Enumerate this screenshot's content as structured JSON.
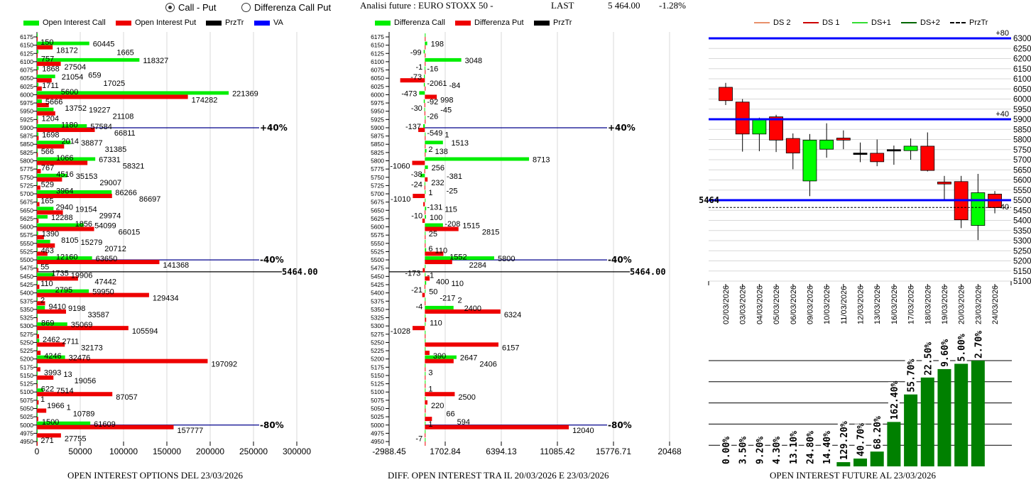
{
  "header": {
    "radio_call_put": "Call - Put",
    "radio_diff": "Differenza Call Put",
    "selected": "Call - Put",
    "analysis_title": "Analisi future : EURO STOXX 50 -",
    "last_label": "LAST",
    "last_value": "5 464.00",
    "change": "-1.28%"
  },
  "colors": {
    "call": "#00ee00",
    "put": "#ee0000",
    "prztr": "#000000",
    "va": "#0000ff",
    "line": "#00008b",
    "candle_up": "#00ff00",
    "candle_down": "#ff0000",
    "future_bar": "#008000",
    "ds2": "#e8906a",
    "ds1": "#cc0000",
    "dsp1": "#33dd33",
    "dsp2": "#006600"
  },
  "chart_data": [
    {
      "type": "bar",
      "orientation": "horizontal",
      "title": "OPEN INTEREST OPTIONS DEL 23/03/2026",
      "legend": [
        "Open Interest Call",
        "Open Interest Put",
        "PrzTr",
        "VA"
      ],
      "legend_placement": "top",
      "xlim": [
        0,
        300000
      ],
      "xticks": [
        "0",
        "50000",
        "100000",
        "150000",
        "200000",
        "250000",
        "300000"
      ],
      "categories": [
        6175,
        6150,
        6125,
        6100,
        6075,
        6050,
        6025,
        6000,
        5975,
        5950,
        5925,
        5900,
        5875,
        5850,
        5825,
        5800,
        5775,
        5750,
        5725,
        5700,
        5675,
        5650,
        5625,
        5600,
        5575,
        5550,
        5525,
        5500,
        5475,
        5450,
        5425,
        5400,
        5375,
        5350,
        5325,
        5300,
        5275,
        5250,
        5225,
        5200,
        5175,
        5150,
        5125,
        5100,
        5075,
        5050,
        5025,
        5000,
        4975,
        4950
      ],
      "series": [
        {
          "name": "Open Interest Call",
          "values": [
            0,
            60445,
            1665,
            118327,
            1868,
            21054,
            1711,
            221369,
            5666,
            19227,
            1204,
            57584,
            1698,
            38877,
            566,
            67331,
            767,
            35153,
            529,
            86266,
            165,
            19154,
            12288,
            54099,
            1390,
            15279,
            463,
            63650,
            55,
            19906,
            110,
            59950,
            2,
            9198,
            0,
            35069,
            0,
            2711,
            0,
            32476,
            0,
            13,
            0,
            7514,
            1,
            1,
            0,
            61609,
            0,
            271
          ]
        },
        {
          "name": "Open Interest Put",
          "values": [
            150,
            18172,
            757,
            27504,
            659,
            17025,
            5600,
            174282,
            13752,
            21108,
            1180,
            66811,
            2014,
            31385,
            1066,
            58321,
            4516,
            29007,
            3964,
            86697,
            2940,
            29974,
            1856,
            66015,
            8105,
            20712,
            12160,
            141368,
            1735,
            47442,
            2795,
            129434,
            9410,
            33587,
            869,
            105594,
            2462,
            32173,
            4246,
            197092,
            3993,
            19056,
            622,
            87057,
            1966,
            10789,
            1500,
            157777,
            27755,
            0
          ]
        }
      ],
      "reference_lines": [
        {
          "strike": 5900,
          "label": "+40%"
        },
        {
          "strike": 5500,
          "label": "-40%"
        },
        {
          "strike": 5000,
          "label": "-80%"
        }
      ],
      "price_line": {
        "value": 5464,
        "label": "5464.00"
      }
    },
    {
      "type": "bar",
      "orientation": "horizontal",
      "title": "DIFF. OPEN INTEREST TRA IL 20/03/2026 E 23/03/2026",
      "legend": [
        "Differenza Call",
        "Differenza Put",
        "PrzTr"
      ],
      "legend_placement": "top",
      "xlim": [
        -2988.45,
        20468
      ],
      "xticks": [
        "-2988.45",
        "1702.84",
        "6394.13",
        "11085.42",
        "15776.71",
        "20468"
      ],
      "categories": [
        6175,
        6150,
        6125,
        6100,
        6075,
        6050,
        6025,
        6000,
        5975,
        5950,
        5925,
        5900,
        5875,
        5850,
        5825,
        5800,
        5775,
        5750,
        5725,
        5700,
        5675,
        5650,
        5625,
        5600,
        5575,
        5550,
        5525,
        5500,
        5475,
        5450,
        5425,
        5400,
        5375,
        5350,
        5325,
        5300,
        5275,
        5250,
        5225,
        5200,
        5175,
        5150,
        5125,
        5100,
        5075,
        5050,
        5025,
        5000,
        4975,
        4950
      ],
      "series": [
        {
          "name": "Differenza Call",
          "values": [
            0,
            198,
            -99,
            3048,
            -16,
            -73,
            -84,
            -473,
            -92,
            -45,
            0,
            -137,
            1,
            1513,
            138,
            8713,
            256,
            -381,
            -24,
            1,
            0,
            115,
            100,
            1515,
            25,
            0,
            110,
            5800,
            0,
            -1,
            110,
            50,
            2,
            2400,
            0,
            0,
            0,
            0,
            0,
            2647,
            0,
            0,
            0,
            0,
            0,
            0,
            0,
            1,
            0,
            0
          ]
        },
        {
          "name": "Differenza Put",
          "values": [
            0,
            0,
            0,
            -1,
            0,
            -2061,
            0,
            998,
            -30,
            -26,
            0,
            -549,
            0,
            2,
            0,
            -1060,
            -38,
            232,
            -25,
            -1010,
            -131,
            -10,
            -208,
            2815,
            0,
            6,
            1552,
            2284,
            -173,
            400,
            -21,
            -217,
            -4,
            6324,
            110,
            -1028,
            0,
            6157,
            390,
            2406,
            3,
            0,
            1,
            2500,
            220,
            66,
            594,
            12040,
            -7,
            0
          ]
        }
      ],
      "reference_lines": [
        {
          "strike": 5900,
          "label": "+40%"
        },
        {
          "strike": 5500,
          "label": "-40%"
        },
        {
          "strike": 5000,
          "label": "-80%"
        }
      ],
      "price_line": {
        "value": 5464,
        "label": "5464.00"
      }
    },
    {
      "type": "candlestick",
      "legend": [
        "DS 2",
        "DS 1",
        "DS+1",
        "DS+2",
        "PrzTr"
      ],
      "legend_placement": "top",
      "ylim": [
        5100,
        6300
      ],
      "yticks": [
        6300,
        6250,
        6200,
        6150,
        6100,
        6050,
        6000,
        5950,
        5900,
        5850,
        5800,
        5750,
        5700,
        5650,
        5600,
        5550,
        5500,
        5450,
        5400,
        5350,
        5300,
        5250,
        5200,
        5150,
        5100
      ],
      "dates": [
        "02/03/2026",
        "03/03/2026",
        "04/03/2026",
        "05/03/2026",
        "06/03/2026",
        "09/03/2026",
        "10/03/2026",
        "11/03/2026",
        "12/03/2026",
        "13/03/2026",
        "16/03/2026",
        "17/03/2026",
        "18/03/2026",
        "19/03/2026",
        "20/03/2026",
        "23/03/2026",
        "24/03/2026"
      ],
      "ohlc": [
        [
          6058,
          6080,
          5970,
          5992
        ],
        [
          5985,
          6000,
          5740,
          5827
        ],
        [
          5827,
          5908,
          5742,
          5900
        ],
        [
          5912,
          5922,
          5738,
          5797
        ],
        [
          5805,
          5830,
          5653,
          5733
        ],
        [
          5595,
          5827,
          5520,
          5797
        ],
        [
          5752,
          5880,
          5710,
          5797
        ],
        [
          5807,
          5845,
          5752,
          5797
        ],
        [
          5733,
          5785,
          5688,
          5731
        ],
        [
          5732,
          5800,
          5668,
          5690
        ],
        [
          5750,
          5770,
          5675,
          5750
        ],
        [
          5745,
          5805,
          5700,
          5767
        ],
        [
          5767,
          5835,
          5642,
          5647
        ],
        [
          5590,
          5620,
          5505,
          5580
        ],
        [
          5592,
          5620,
          5362,
          5403
        ],
        [
          5375,
          5630,
          5303,
          5537
        ],
        [
          5530,
          5545,
          5435,
          5463
        ]
      ],
      "levels": [
        {
          "value": 6300,
          "label": "+80"
        },
        {
          "value": 5900,
          "label": "+40"
        },
        {
          "value": 5500,
          "label": "-40"
        }
      ],
      "price_line": {
        "value": 5464,
        "label": "5464"
      }
    },
    {
      "type": "bar",
      "title": "OPEN INTEREST FUTURE AL 23/03/2026",
      "categories": [
        "02/03/2026",
        "03/03/2026",
        "04/03/2026",
        "05/03/2026",
        "06/03/2026",
        "09/03/2026",
        "10/03/2026",
        "11/03/2026",
        "12/03/2026",
        "13/03/2026",
        "16/03/2026",
        "17/03/2026",
        "18/03/2026",
        "19/03/2026",
        "20/03/2026",
        "23/03/2026",
        "24/03/2026"
      ],
      "values": [
        0,
        0,
        0,
        0,
        0,
        0,
        0,
        4,
        7.4,
        14,
        42,
        68,
        84,
        92,
        97,
        100,
        0
      ],
      "labels": [
        "0.00%",
        "3.50%",
        "9.20%",
        "4.30%",
        "13.10%",
        "24.80%",
        "14.40%",
        "129.20%",
        "40.70%",
        "68.20%",
        "162.40%",
        "55.70%",
        "22.50%",
        "9.60%",
        "5.00%",
        "2.70%"
      ],
      "ylim": [
        0,
        100
      ],
      "grid": true
    }
  ]
}
